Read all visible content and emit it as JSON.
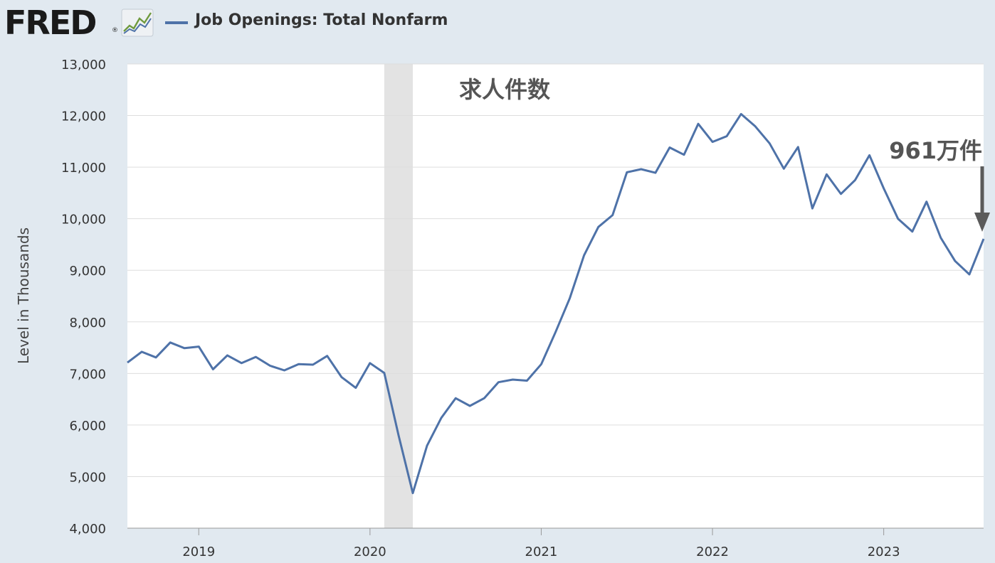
{
  "header": {
    "logo": "FRED",
    "legend_label": "Job Openings: Total Nonfarm"
  },
  "colors": {
    "series": "#4e72a8",
    "background": "#e1e9f0",
    "plot_background": "#ffffff",
    "recession_shade": "#e3e3e3",
    "arrow": "#5a5a5a"
  },
  "chart_data": {
    "type": "line",
    "title": "求人件数",
    "ylabel": "Level in Thousands",
    "xlabel": "",
    "ylim": [
      4000,
      13000
    ],
    "yticks": [
      4000,
      5000,
      6000,
      7000,
      8000,
      9000,
      10000,
      11000,
      12000,
      13000
    ],
    "ytick_labels": [
      "4,000",
      "5,000",
      "6,000",
      "7,000",
      "8,000",
      "9,000",
      "10,000",
      "11,000",
      "12,000",
      "13,000"
    ],
    "xlim": [
      "2018-08",
      "2023-08"
    ],
    "xtick_labels": [
      "2019",
      "2020",
      "2021",
      "2022",
      "2023"
    ],
    "grid": true,
    "recession": {
      "start": "2020-02",
      "end": "2020-04"
    },
    "annotation": {
      "text": "961万件",
      "date": "2023-08",
      "value": 9610
    },
    "series": [
      {
        "name": "Job Openings: Total Nonfarm",
        "x": [
          "2018-08",
          "2018-09",
          "2018-10",
          "2018-11",
          "2018-12",
          "2019-01",
          "2019-02",
          "2019-03",
          "2019-04",
          "2019-05",
          "2019-06",
          "2019-07",
          "2019-08",
          "2019-09",
          "2019-10",
          "2019-11",
          "2019-12",
          "2020-01",
          "2020-02",
          "2020-03",
          "2020-04",
          "2020-05",
          "2020-06",
          "2020-07",
          "2020-08",
          "2020-09",
          "2020-10",
          "2020-11",
          "2020-12",
          "2021-01",
          "2021-02",
          "2021-03",
          "2021-04",
          "2021-05",
          "2021-06",
          "2021-07",
          "2021-08",
          "2021-09",
          "2021-10",
          "2021-11",
          "2021-12",
          "2022-01",
          "2022-02",
          "2022-03",
          "2022-04",
          "2022-05",
          "2022-06",
          "2022-07",
          "2022-08",
          "2022-09",
          "2022-10",
          "2022-11",
          "2022-12",
          "2023-01",
          "2023-02",
          "2023-03",
          "2023-04",
          "2023-05",
          "2023-06",
          "2023-07",
          "2023-08"
        ],
        "values": [
          7210,
          7420,
          7310,
          7600,
          7490,
          7520,
          7080,
          7350,
          7200,
          7320,
          7150,
          7060,
          7180,
          7170,
          7340,
          6930,
          6720,
          7200,
          7010,
          5800,
          4680,
          5600,
          6140,
          6520,
          6370,
          6520,
          6830,
          6880,
          6860,
          7180,
          7800,
          8460,
          9290,
          9840,
          10070,
          10900,
          10960,
          10890,
          11380,
          11240,
          11840,
          11490,
          11600,
          12030,
          11790,
          11460,
          10970,
          11390,
          10200,
          10860,
          10480,
          10750,
          11230,
          10590,
          10000,
          9750,
          10330,
          9630,
          9180,
          8920,
          9610
        ]
      }
    ]
  }
}
